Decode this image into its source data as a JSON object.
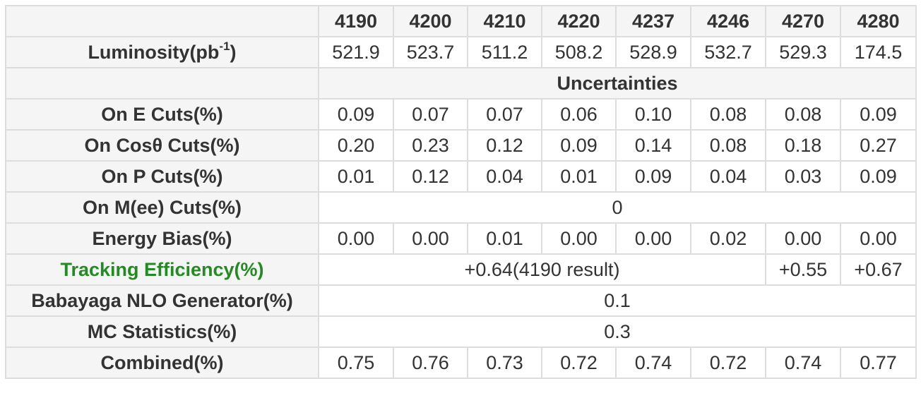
{
  "energies": [
    "4190",
    "4200",
    "4210",
    "4220",
    "4237",
    "4246",
    "4270",
    "4280"
  ],
  "luminosity": {
    "label": "Luminosity(pb",
    "unit_sup": "-1",
    "label_close": ")",
    "values": [
      "521.9",
      "523.7",
      "511.2",
      "508.2",
      "528.9",
      "532.7",
      "529.3",
      "174.5"
    ]
  },
  "uncertainties_title": "Uncertainties",
  "rows": {
    "e_cuts": {
      "label": "On E Cuts(%)",
      "values": [
        "0.09",
        "0.07",
        "0.07",
        "0.06",
        "0.10",
        "0.08",
        "0.08",
        "0.09"
      ]
    },
    "cos_cuts": {
      "label": "On Cosθ Cuts(%)",
      "values": [
        "0.20",
        "0.23",
        "0.12",
        "0.09",
        "0.14",
        "0.08",
        "0.18",
        "0.27"
      ]
    },
    "p_cuts": {
      "label": "On P Cuts(%)",
      "values": [
        "0.01",
        "0.12",
        "0.04",
        "0.01",
        "0.09",
        "0.04",
        "0.03",
        "0.09"
      ]
    },
    "mee_cuts": {
      "label": "On M(ee) Cuts(%)",
      "value": "0"
    },
    "energy_bias": {
      "label": "Energy Bias(%)",
      "values": [
        "0.00",
        "0.00",
        "0.01",
        "0.00",
        "0.00",
        "0.02",
        "0.00",
        "0.00"
      ]
    },
    "tracking": {
      "label": "Tracking Efficiency(%)",
      "label_color": "#228b22",
      "merged_value": "+0.64(4190 result)",
      "v4270": "+0.55",
      "v4280": "+0.67"
    },
    "babayaga": {
      "label": "Babayaga NLO Generator(%)",
      "value": "0.1"
    },
    "mc_stats": {
      "label": "MC Statistics(%)",
      "value": "0.3"
    },
    "combined": {
      "label": "Combined(%)",
      "values": [
        "0.75",
        "0.76",
        "0.73",
        "0.72",
        "0.74",
        "0.72",
        "0.74",
        "0.77"
      ]
    }
  }
}
